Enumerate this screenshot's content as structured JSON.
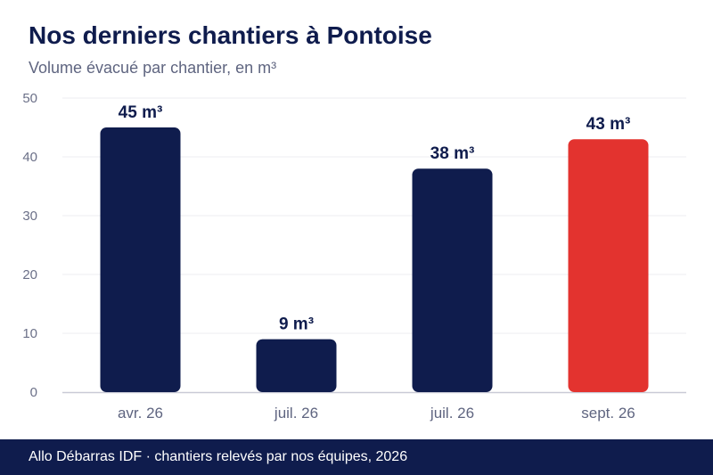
{
  "chart_data": {
    "type": "bar",
    "title": "Nos derniers chantiers à Pontoise",
    "subtitle": "Volume évacué par chantier, en m³",
    "xlabel": "",
    "ylabel": "",
    "categories": [
      "avr. 26",
      "juil. 26",
      "juil. 26",
      "sept. 26"
    ],
    "values": [
      45,
      9,
      38,
      43
    ],
    "value_labels": [
      "45 m³",
      "9 m³",
      "38 m³",
      "43 m³"
    ],
    "ylim": [
      0,
      50
    ],
    "yticks": [
      0,
      10,
      20,
      30,
      40,
      50
    ],
    "grid": true,
    "colors": {
      "bar": "#0f1c4d",
      "highlight": "#e3332f",
      "grid": "#ececf2",
      "axis": "#c9cad6"
    },
    "highlight_index": 3
  },
  "footer": {
    "text": "Allo Débarras IDF · chantiers relevés par nos équipes, 2026"
  }
}
